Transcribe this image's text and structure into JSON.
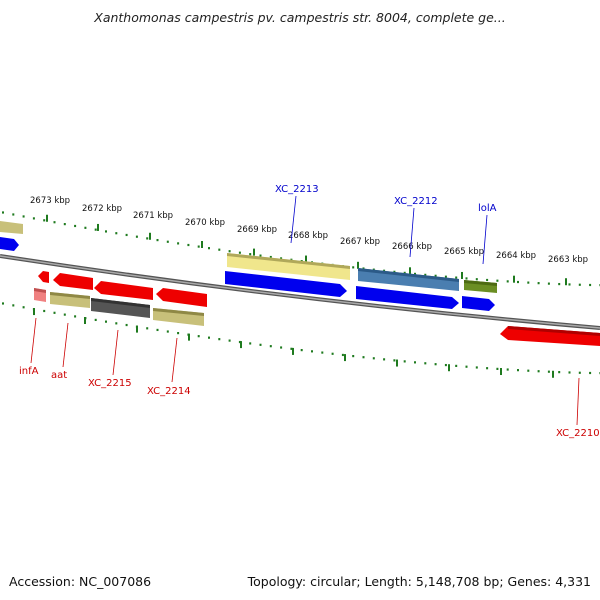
{
  "title": "Xanthomonas campestris pv. campestris str. 8004, complete ge...",
  "footer": {
    "accession": "Accession: NC_007086",
    "summary": "Topology: circular; Length: 5,148,708 bp; Genes: 4,331"
  },
  "colors": {
    "backbone": "#888888",
    "tick": "#1e7a1e",
    "forward_label": "#0000cc",
    "reverse_label": "#cc0000",
    "blue": "#0000ee",
    "red": "#ee0000",
    "khaki": "#c8c07a",
    "pale_yellow": "#f0e68c",
    "steel_blue": "#4a7eb0",
    "olive": "#6b8e23",
    "dark_gray": "#555555",
    "salmon": "#f08080"
  },
  "scale_labels": [
    "2673 kbp",
    "2672 kbp",
    "2671 kbp",
    "2670 kbp",
    "2669 kbp",
    "2668 kbp",
    "2667 kbp",
    "2666 kbp",
    "2665 kbp",
    "2664 kbp",
    "2663 kbp"
  ],
  "gene_labels": {
    "forward": [
      "XC_2213",
      "XC_2212",
      "lolA"
    ],
    "reverse": [
      "infA",
      "aat",
      "XC_2215",
      "XC_2214",
      "XC_2210"
    ]
  }
}
